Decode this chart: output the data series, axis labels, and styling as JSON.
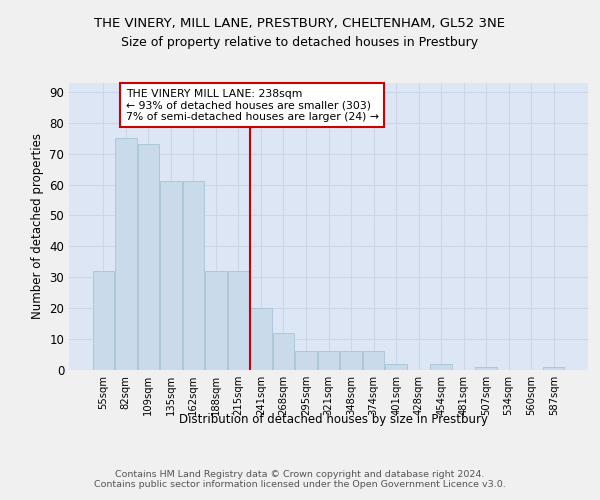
{
  "title1": "THE VINERY, MILL LANE, PRESTBURY, CHELTENHAM, GL52 3NE",
  "title2": "Size of property relative to detached houses in Prestbury",
  "xlabel": "Distribution of detached houses by size in Prestbury",
  "ylabel": "Number of detached properties",
  "categories": [
    "55sqm",
    "82sqm",
    "109sqm",
    "135sqm",
    "162sqm",
    "188sqm",
    "215sqm",
    "241sqm",
    "268sqm",
    "295sqm",
    "321sqm",
    "348sqm",
    "374sqm",
    "401sqm",
    "428sqm",
    "454sqm",
    "481sqm",
    "507sqm",
    "534sqm",
    "560sqm",
    "587sqm"
  ],
  "values": [
    32,
    75,
    73,
    61,
    61,
    32,
    32,
    20,
    12,
    6,
    6,
    6,
    6,
    2,
    0,
    2,
    0,
    1,
    0,
    0,
    1
  ],
  "bar_color": "#c9daea",
  "bar_edge_color": "#a8c4d8",
  "vline_color": "#cc0000",
  "vline_x_idx": 7,
  "annotation_text": "THE VINERY MILL LANE: 238sqm\n← 93% of detached houses are smaller (303)\n7% of semi-detached houses are larger (24) →",
  "annotation_box_edge": "#cc0000",
  "ylim": [
    0,
    93
  ],
  "yticks": [
    0,
    10,
    20,
    30,
    40,
    50,
    60,
    70,
    80,
    90
  ],
  "grid_color": "#cdd6e8",
  "background_color": "#dce6f5",
  "fig_background": "#f0f0f0",
  "footer_text": "Contains HM Land Registry data © Crown copyright and database right 2024.\nContains public sector information licensed under the Open Government Licence v3.0."
}
